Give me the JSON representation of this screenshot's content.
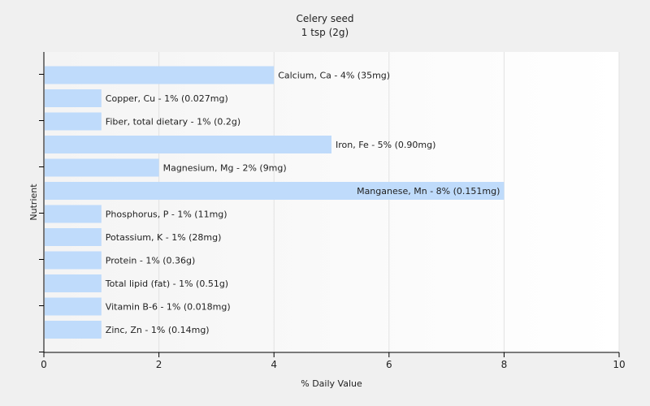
{
  "chart_data": {
    "type": "bar",
    "orientation": "horizontal",
    "title": "Celery seed",
    "subtitle": "1 tsp (2g)",
    "xlabel": "% Daily Value",
    "ylabel": "Nutrient",
    "xlim": [
      0,
      10
    ],
    "xticks": [
      0,
      2,
      4,
      6,
      8,
      10
    ],
    "grid": true,
    "bar_color": "#bfdbfb",
    "categories": [
      "Calcium, Ca",
      "Copper, Cu",
      "Fiber, total dietary",
      "Iron, Fe",
      "Magnesium, Mg",
      "Manganese, Mn",
      "Phosphorus, P",
      "Potassium, K",
      "Protein",
      "Total lipid (fat)",
      "Vitamin B-6",
      "Zinc, Zn"
    ],
    "values": [
      4,
      1,
      1,
      5,
      2,
      8,
      1,
      1,
      1,
      1,
      1,
      1
    ],
    "labels": [
      "Calcium, Ca - 4% (35mg)",
      "Copper, Cu - 1% (0.027mg)",
      "Fiber, total dietary - 1% (0.2g)",
      "Iron, Fe - 5% (0.90mg)",
      "Magnesium, Mg - 2% (9mg)",
      "Manganese, Mn - 8% (0.151mg)",
      "Phosphorus, P - 1% (11mg)",
      "Potassium, K - 1% (28mg)",
      "Protein - 1% (0.36g)",
      "Total lipid (fat) - 1% (0.51g)",
      "Vitamin B-6 - 1% (0.018mg)",
      "Zinc, Zn - 1% (0.14mg)"
    ]
  }
}
